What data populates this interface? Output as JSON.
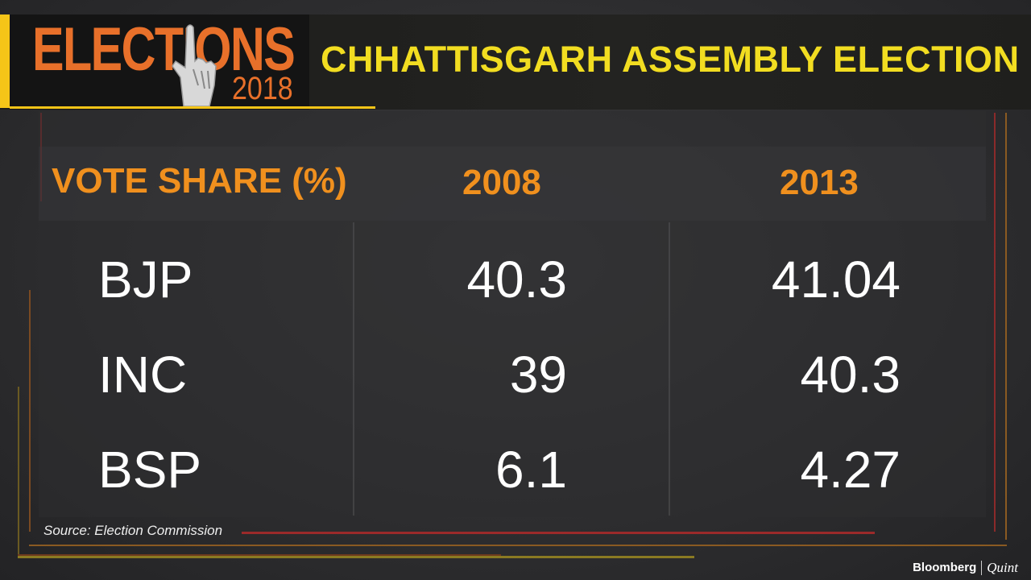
{
  "header": {
    "logo_word": "ELECTIONS",
    "logo_year": "2018",
    "title": "CHHATTISGARH ASSEMBLY ELECTION"
  },
  "table": {
    "headers": [
      "VOTE SHARE (%)",
      "2008",
      "2013"
    ],
    "rows": [
      {
        "party": "BJP",
        "v2008": "40.3",
        "v2013": "41.04"
      },
      {
        "party": "INC",
        "v2008": "39",
        "v2013": "40.3"
      },
      {
        "party": "BSP",
        "v2008": "6.1",
        "v2013": "4.27"
      }
    ]
  },
  "source": "Source: Election Commission",
  "brand": {
    "left": "Bloomberg",
    "right": "Quint"
  },
  "colors": {
    "header_title": "#f2dd21",
    "header_accent": "#f5c518",
    "logo": "#e8702a",
    "column_header": "#f0901e",
    "values": "#ffffff",
    "background": "#2c2c2e"
  }
}
